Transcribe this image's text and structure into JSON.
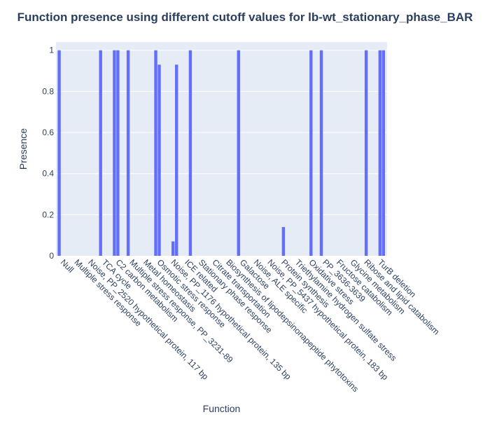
{
  "chart_data": {
    "type": "bar",
    "title": "Function presence using different cutoff values for lb-wt_stationary_phase_BAR",
    "xlabel": "Function",
    "ylabel": "Presence",
    "ylim": [
      0,
      1.04
    ],
    "yticks": [
      0,
      0.2,
      0.4,
      0.6,
      0.8,
      1
    ],
    "ytick_labels": [
      "0",
      "0.2",
      "0.4",
      "0.6",
      "0.8",
      "1"
    ],
    "grid": true,
    "bar_color": "#636efa",
    "plot_bg": "#e5ecf6",
    "categories": [
      "Null",
      "Multiple stress response",
      "Noise, PP_2520 hypothetical protein, 117 bp",
      "TCA cycle",
      "C2 carbon metabolism",
      "Multiple stress response, PP_3231-89",
      "Metal homeostasis",
      "Osmotic stress response",
      "Noise, PP_1176 hypothetical protein, 135 bp",
      "ICE related",
      "Stationary phase response",
      "Citrate transportation",
      "Biosynthesis of lipodepsinonapeptide phytotoxins",
      "Galactose",
      "Noise, ALE specific",
      "Noise, PP_5437 hypothetical protein, 183 bp",
      "Protein synthesis",
      "Triethylamine hydrogen sulfate stress",
      "Oxidative stress",
      "PP_3636-3639",
      "Fructose catabolism",
      "Glycine metabolism",
      "Ribose and lipid catabolism",
      "TurB deletion"
    ],
    "series": [
      {
        "values": [
          1,
          0,
          0,
          1,
          1,
          1,
          0,
          1,
          0,
          0,
          0,
          0,
          0,
          1,
          0,
          0,
          0,
          0,
          0,
          1,
          0,
          0,
          0,
          0
        ]
      },
      {
        "values": [
          0,
          0,
          0,
          0,
          1,
          0,
          0,
          0.93,
          0.07,
          0,
          0,
          0,
          0,
          0,
          0,
          0,
          0.14,
          0,
          1,
          0,
          0,
          0,
          1,
          1
        ]
      },
      {
        "values": [
          0,
          0,
          0,
          0,
          0,
          0,
          0,
          0,
          0.93,
          1,
          0,
          0,
          0,
          0,
          0,
          0,
          0,
          0,
          0,
          0,
          0,
          0,
          0,
          1
        ]
      }
    ]
  }
}
